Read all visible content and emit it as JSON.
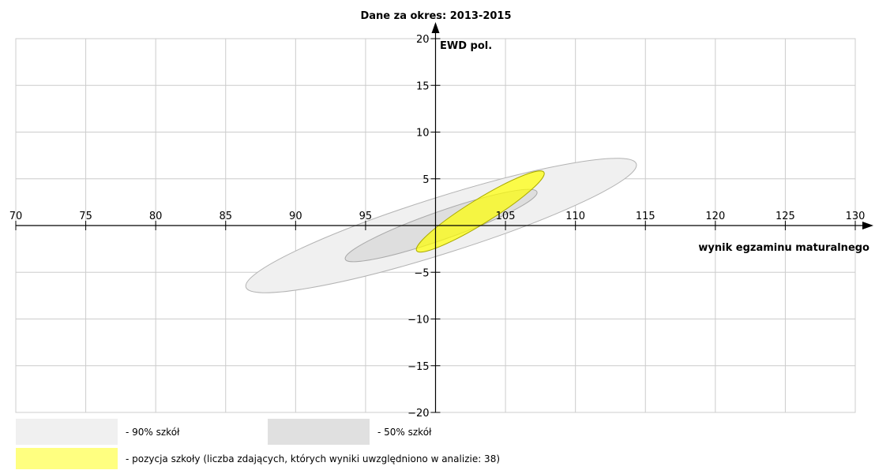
{
  "chart_data": {
    "type": "scatter",
    "title": "Dane za okres: 2013-2015",
    "xlabel": "wynik egzaminu maturalnego",
    "ylabel": "EWD pol.",
    "xlim": [
      70,
      130
    ],
    "ylim": [
      -20,
      20
    ],
    "x_ticks": [
      70,
      75,
      80,
      85,
      90,
      95,
      100,
      105,
      110,
      115,
      120,
      125,
      130
    ],
    "y_ticks": [
      -20,
      -15,
      -10,
      -5,
      0,
      5,
      10,
      15,
      20
    ],
    "x_tick_labels": [
      "70",
      "75",
      "80",
      "85",
      "90",
      "95",
      "",
      "105",
      "110",
      "115",
      "120",
      "125",
      "130"
    ],
    "y_tick_labels": [
      "−20",
      "−15",
      "−10",
      "−5",
      "",
      "5",
      "10",
      "15",
      "20"
    ],
    "grid": true,
    "ellipses": [
      {
        "id": "90",
        "center": [
          100.4,
          0.0
        ],
        "endpoint_a": [
          86.4,
          -6.6
        ],
        "endpoint_b": [
          114.3,
          6.6
        ],
        "minor_semi": 3.0,
        "fill": "#f0f0f0",
        "stroke": "#b3b3b3"
      },
      {
        "id": "50",
        "center": [
          100.4,
          0.0
        ],
        "endpoint_a": [
          93.6,
          -3.6
        ],
        "endpoint_b": [
          107.3,
          3.6
        ],
        "minor_semi": 1.5,
        "fill": "#dedede",
        "stroke": "#aaaaaa"
      },
      {
        "id": "school",
        "center": [
          103.2,
          1.5
        ],
        "endpoint_a": [
          98.4,
          -2.8
        ],
        "endpoint_b": [
          107.5,
          5.6
        ],
        "minor_semi": 1.3,
        "fill": "#ffff00",
        "fill_opacity": 0.7,
        "stroke": "#aaaa00"
      }
    ]
  },
  "legend": {
    "items": [
      {
        "label": "- 90% szkół",
        "color": "#f0f0f0"
      },
      {
        "label": "- 50% szkół",
        "color": "#e0e0e0"
      },
      {
        "label": "- pozycja szkoły (liczba zdających, których wyniki uwzględniono w analizie: 38)",
        "color": "#ffff80"
      }
    ]
  }
}
